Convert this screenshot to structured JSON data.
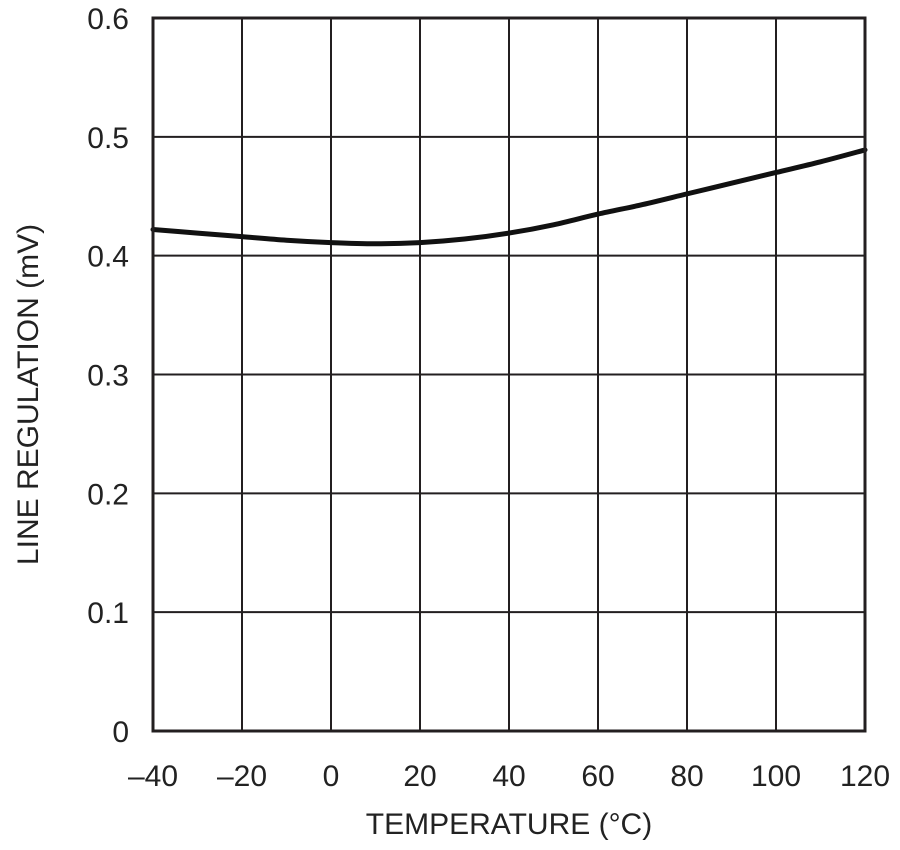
{
  "chart_data": {
    "type": "line",
    "title": "",
    "xlabel": "TEMPERATURE (°C)",
    "ylabel": "LINE REGULATION (mV)",
    "xlim": [
      -40,
      120
    ],
    "ylim": [
      0,
      0.6
    ],
    "x_ticks": [
      -40,
      -20,
      0,
      20,
      40,
      60,
      80,
      100,
      120
    ],
    "x_tick_labels": [
      "–40",
      "–20",
      "0",
      "20",
      "40",
      "60",
      "80",
      "100",
      "120"
    ],
    "y_ticks": [
      0,
      0.1,
      0.2,
      0.3,
      0.4,
      0.5,
      0.6
    ],
    "y_tick_labels": [
      "0",
      "0.1",
      "0.2",
      "0.3",
      "0.4",
      "0.5",
      "0.6"
    ],
    "grid": true,
    "legend": "none",
    "series": [
      {
        "color": "#111111",
        "x": [
          -40,
          -30,
          -20,
          -10,
          0,
          10,
          20,
          30,
          40,
          50,
          60,
          70,
          80,
          90,
          100,
          110,
          120
        ],
        "y": [
          0.422,
          0.419,
          0.416,
          0.413,
          0.411,
          0.41,
          0.411,
          0.414,
          0.419,
          0.426,
          0.435,
          0.443,
          0.452,
          0.461,
          0.47,
          0.479,
          0.489
        ]
      }
    ]
  }
}
